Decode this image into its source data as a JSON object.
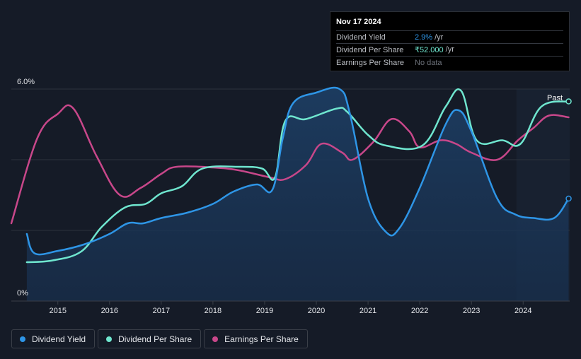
{
  "tooltip": {
    "date": "Nov 17 2024",
    "rows": [
      {
        "label": "Dividend Yield",
        "value": "2.9%",
        "unit": "/yr",
        "color": "#2e95e6"
      },
      {
        "label": "Dividend Per Share",
        "value": "₹52.000",
        "unit": "/yr",
        "color": "#6fe6cf"
      },
      {
        "label": "Earnings Per Share",
        "value": "No data",
        "unit": "",
        "color": "#6d727b"
      }
    ]
  },
  "legend": [
    {
      "label": "Dividend Yield",
      "color": "#2e95e6"
    },
    {
      "label": "Dividend Per Share",
      "color": "#6fe6cf"
    },
    {
      "label": "Earnings Per Share",
      "color": "#c8478a"
    }
  ],
  "chart_data": {
    "type": "line",
    "title": "",
    "xlabel": "",
    "ylabel": "",
    "ylim": [
      0,
      6
    ],
    "xlim": [
      2014.1,
      2024.9
    ],
    "y_tick_labels": [
      "6.0%",
      "0%"
    ],
    "x_tick_labels": [
      "2015",
      "2016",
      "2017",
      "2018",
      "2019",
      "2020",
      "2021",
      "2022",
      "2023",
      "2024"
    ],
    "past_label": "Past",
    "past_start": 2023.87,
    "series": [
      {
        "name": "Dividend Yield",
        "color": "#2e95e6",
        "points": [
          [
            2014.4,
            1.9
          ],
          [
            2014.55,
            1.35
          ],
          [
            2015.0,
            1.42
          ],
          [
            2015.5,
            1.6
          ],
          [
            2016.0,
            1.9
          ],
          [
            2016.35,
            2.2
          ],
          [
            2016.65,
            2.2
          ],
          [
            2017.0,
            2.35
          ],
          [
            2017.5,
            2.5
          ],
          [
            2018.0,
            2.75
          ],
          [
            2018.4,
            3.1
          ],
          [
            2018.85,
            3.3
          ],
          [
            2019.15,
            3.15
          ],
          [
            2019.35,
            4.6
          ],
          [
            2019.55,
            5.6
          ],
          [
            2020.0,
            5.9
          ],
          [
            2020.45,
            6.0
          ],
          [
            2020.65,
            5.3
          ],
          [
            2021.0,
            2.9
          ],
          [
            2021.35,
            1.95
          ],
          [
            2021.6,
            2.05
          ],
          [
            2022.0,
            3.2
          ],
          [
            2022.5,
            5.0
          ],
          [
            2022.75,
            5.4
          ],
          [
            2023.0,
            4.8
          ],
          [
            2023.5,
            2.9
          ],
          [
            2023.85,
            2.45
          ],
          [
            2024.2,
            2.35
          ],
          [
            2024.6,
            2.35
          ],
          [
            2024.88,
            2.9
          ]
        ]
      },
      {
        "name": "Dividend Per Share",
        "color": "#6fe6cf",
        "points": [
          [
            2014.4,
            1.1
          ],
          [
            2014.9,
            1.15
          ],
          [
            2015.45,
            1.4
          ],
          [
            2015.85,
            2.1
          ],
          [
            2016.3,
            2.65
          ],
          [
            2016.7,
            2.75
          ],
          [
            2017.0,
            3.05
          ],
          [
            2017.4,
            3.25
          ],
          [
            2017.8,
            3.75
          ],
          [
            2018.5,
            3.8
          ],
          [
            2018.95,
            3.75
          ],
          [
            2019.2,
            3.5
          ],
          [
            2019.4,
            5.1
          ],
          [
            2019.8,
            5.15
          ],
          [
            2020.4,
            5.45
          ],
          [
            2020.6,
            5.35
          ],
          [
            2021.0,
            4.7
          ],
          [
            2021.35,
            4.4
          ],
          [
            2022.05,
            4.4
          ],
          [
            2022.5,
            5.5
          ],
          [
            2022.8,
            5.95
          ],
          [
            2023.1,
            4.55
          ],
          [
            2023.6,
            4.55
          ],
          [
            2023.95,
            4.45
          ],
          [
            2024.35,
            5.5
          ],
          [
            2024.88,
            5.65
          ]
        ]
      },
      {
        "name": "Earnings Per Share",
        "color": "#c8478a",
        "points": [
          [
            2014.1,
            2.2
          ],
          [
            2014.6,
            4.6
          ],
          [
            2015.0,
            5.3
          ],
          [
            2015.3,
            5.45
          ],
          [
            2015.75,
            4.1
          ],
          [
            2016.2,
            3.0
          ],
          [
            2016.6,
            3.2
          ],
          [
            2017.0,
            3.6
          ],
          [
            2017.3,
            3.8
          ],
          [
            2018.0,
            3.78
          ],
          [
            2018.5,
            3.7
          ],
          [
            2019.1,
            3.5
          ],
          [
            2019.4,
            3.45
          ],
          [
            2019.8,
            3.85
          ],
          [
            2020.1,
            4.45
          ],
          [
            2020.5,
            4.2
          ],
          [
            2020.7,
            4.0
          ],
          [
            2021.1,
            4.5
          ],
          [
            2021.45,
            5.15
          ],
          [
            2021.8,
            4.8
          ],
          [
            2022.0,
            4.35
          ],
          [
            2022.4,
            4.55
          ],
          [
            2022.7,
            4.45
          ],
          [
            2023.0,
            4.2
          ],
          [
            2023.5,
            4.0
          ],
          [
            2023.9,
            4.55
          ],
          [
            2024.2,
            4.9
          ],
          [
            2024.5,
            5.25
          ],
          [
            2024.88,
            5.2
          ]
        ]
      }
    ]
  }
}
